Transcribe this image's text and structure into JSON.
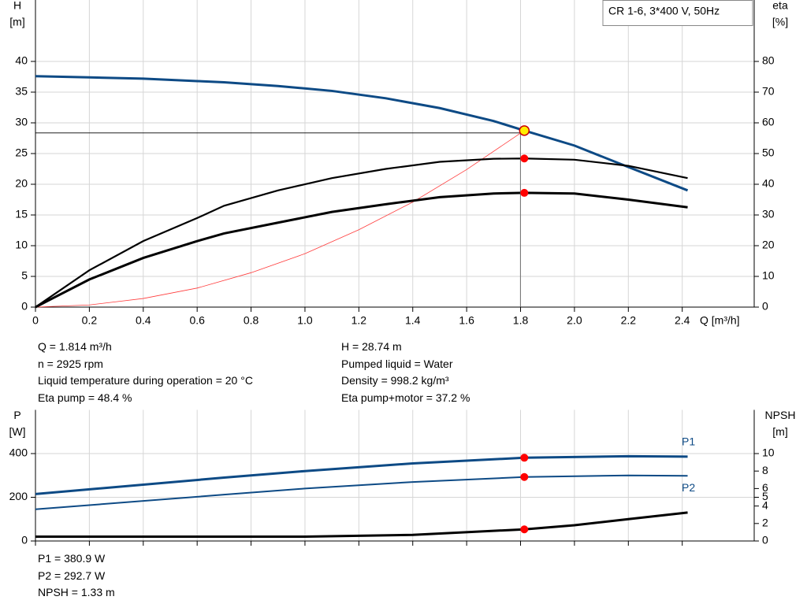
{
  "chart_data": [
    {
      "type": "line",
      "legend_box": "CR 1-6, 3*400 V, 50Hz",
      "ylabel": [
        "H",
        "[m]"
      ],
      "y2label": [
        "eta",
        "[%]"
      ],
      "xlabel": "Q [m³/h]",
      "xlim": [
        0,
        2.667
      ],
      "ylim": [
        0,
        50
      ],
      "y2lim": [
        0,
        100
      ],
      "xticks": [
        0,
        0.2,
        0.4,
        0.6,
        0.8,
        {
          "value": 1,
          "label": "1.0"
        },
        1.2,
        1.4,
        1.6,
        1.8,
        {
          "value": 2,
          "label": "2.0"
        },
        2.2,
        2.4
      ],
      "yticks": [
        0,
        5,
        10,
        15,
        20,
        25,
        30,
        35,
        40
      ],
      "y2ticks": [
        0,
        10,
        20,
        30,
        40,
        50,
        60,
        70,
        80
      ],
      "grid": true,
      "series": [
        {
          "color": "#ff3b3b",
          "width": 0.8,
          "axis": "y",
          "x": [
            0,
            0.2,
            0.4,
            0.6,
            0.8,
            1.0,
            1.2,
            1.4,
            1.6,
            1.814
          ],
          "values": [
            0,
            0.35,
            1.4,
            3.1,
            5.6,
            8.7,
            12.6,
            17.1,
            22.4,
            28.74
          ]
        },
        {
          "color": "#0d4a85",
          "width": 3,
          "axis": "y",
          "x": [
            0,
            0.2,
            0.4,
            0.6,
            0.7,
            0.9,
            1.1,
            1.3,
            1.5,
            1.7,
            1.814,
            2.0,
            2.2,
            2.42
          ],
          "values": [
            37.6,
            37.4,
            37.2,
            36.8,
            36.6,
            36.0,
            35.2,
            34.0,
            32.4,
            30.3,
            28.74,
            26.3,
            22.8,
            19.0
          ]
        },
        {
          "color": "#000000",
          "width": 2.2,
          "axis": "y2",
          "x": [
            0,
            0.2,
            0.4,
            0.6,
            0.7,
            0.9,
            1.1,
            1.3,
            1.5,
            1.7,
            1.814,
            2.0,
            2.2,
            2.42
          ],
          "values": [
            0,
            12,
            21.5,
            29,
            33,
            38,
            42,
            45,
            47.3,
            48.3,
            48.4,
            48,
            46,
            42
          ]
        },
        {
          "color": "#000000",
          "width": 3,
          "axis": "y2",
          "x": [
            0,
            0.2,
            0.4,
            0.6,
            0.7,
            0.9,
            1.1,
            1.3,
            1.5,
            1.7,
            1.814,
            2.0,
            2.2,
            2.42
          ],
          "values": [
            0,
            9,
            16,
            21.5,
            24,
            27.5,
            31,
            33.5,
            35.8,
            37,
            37.2,
            37,
            35,
            32.5
          ]
        }
      ],
      "markers": [
        {
          "x": 1.814,
          "value": 28.74,
          "axis": "y",
          "color": "#ffee00"
        },
        {
          "x": 1.814,
          "value": 48.4,
          "axis": "y2",
          "color": "#ff0000"
        },
        {
          "x": 1.814,
          "value": 37.2,
          "axis": "y2",
          "color": "#ff0000"
        }
      ],
      "info": [
        [
          "Q = 1.814 m³/h",
          "n = 2925 rpm",
          "Liquid temperature during operation = 20 °C",
          "Eta pump = 48.4 %"
        ],
        [
          "H = 28.74 m",
          "Pumped liquid = Water",
          "Density = 998.2 kg/m³",
          "Eta pump+motor = 37.2 %"
        ]
      ]
    },
    {
      "type": "line",
      "ylabel": [
        "P",
        "[W]"
      ],
      "y2label": [
        "NPSH",
        "[m]"
      ],
      "xlim": [
        0,
        2.667
      ],
      "ylim": [
        0,
        600
      ],
      "y2lim": [
        0,
        15
      ],
      "xticks": [
        0,
        0.2,
        0.4,
        0.6,
        0.8,
        1,
        1.2,
        1.4,
        1.6,
        1.8,
        2,
        2.2,
        2.4
      ],
      "yticks": [
        0,
        200,
        400
      ],
      "y2ticks": [
        0,
        2,
        4,
        5,
        6,
        8,
        10
      ],
      "grid": true,
      "series": [
        {
          "name": "P1",
          "color": "#0d4a85",
          "width": 3,
          "axis": "y",
          "x": [
            0,
            0.7,
            1.0,
            1.4,
            1.814,
            2.2,
            2.42
          ],
          "values": [
            215,
            290,
            320,
            355,
            380.9,
            388,
            386
          ]
        },
        {
          "name": "P2",
          "color": "#0d4a85",
          "width": 2,
          "axis": "y",
          "x": [
            0,
            0.7,
            1.0,
            1.4,
            1.814,
            2.2,
            2.42
          ],
          "values": [
            145,
            212,
            240,
            270,
            292.7,
            300,
            298
          ]
        },
        {
          "color": "#000000",
          "width": 3,
          "axis": "y2",
          "x": [
            0,
            0.7,
            1.0,
            1.4,
            1.814,
            2.0,
            2.2,
            2.42
          ],
          "values": [
            0.5,
            0.5,
            0.5,
            0.7,
            1.33,
            1.8,
            2.5,
            3.25
          ]
        }
      ],
      "markers": [
        {
          "x": 1.814,
          "value": 380.9,
          "axis": "y",
          "color": "#ff0000"
        },
        {
          "x": 1.814,
          "value": 292.7,
          "axis": "y",
          "color": "#ff0000"
        },
        {
          "x": 1.814,
          "value": 1.33,
          "axis": "y2",
          "color": "#ff0000"
        }
      ],
      "info": [
        [
          "P1 = 380.9 W",
          "P2 = 292.7 W",
          "NPSH = 1.33 m"
        ]
      ]
    }
  ]
}
